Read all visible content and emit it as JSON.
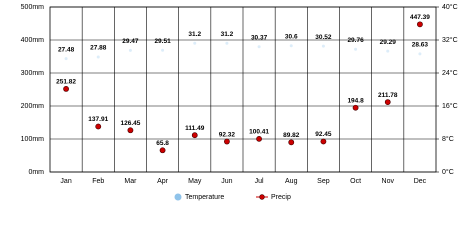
{
  "chart_data": {
    "type": "line",
    "categories": [
      "Jan",
      "Feb",
      "Mar",
      "Apr",
      "May",
      "Jun",
      "Jul",
      "Aug",
      "Sep",
      "Oct",
      "Nov",
      "Dec"
    ],
    "series": [
      {
        "name": "Temperature",
        "color": "#8fc3ea",
        "axis": "y2",
        "values": [
          27.48,
          27.88,
          29.47,
          29.51,
          31.2,
          31.2,
          30.37,
          30.6,
          30.52,
          29.76,
          29.29,
          28.63
        ]
      },
      {
        "name": "Precip",
        "color": "#cc0000",
        "values": [
          251.82,
          137.91,
          126.45,
          65.8,
          111.49,
          92.32,
          100.41,
          89.82,
          92.45,
          194.8,
          211.78,
          447.39
        ]
      }
    ],
    "ylim": [
      0,
      500
    ],
    "yticks": [
      {
        "value": 0,
        "label": "0mm"
      },
      {
        "value": 100,
        "label": "100mm"
      },
      {
        "value": 200,
        "label": "200mm"
      },
      {
        "value": 300,
        "label": "300mm"
      },
      {
        "value": 400,
        "label": "400mm"
      },
      {
        "value": 500,
        "label": "500mm"
      }
    ],
    "y2lim": [
      0,
      40
    ],
    "y2ticks": [
      {
        "value": 0,
        "label": "0°C"
      },
      {
        "value": 8,
        "label": "8°C"
      },
      {
        "value": 16,
        "label": "16°C"
      },
      {
        "value": 24,
        "label": "24°C"
      },
      {
        "value": 32,
        "label": "32°C"
      },
      {
        "value": 40,
        "label": "40°C"
      }
    ],
    "grid": true
  }
}
